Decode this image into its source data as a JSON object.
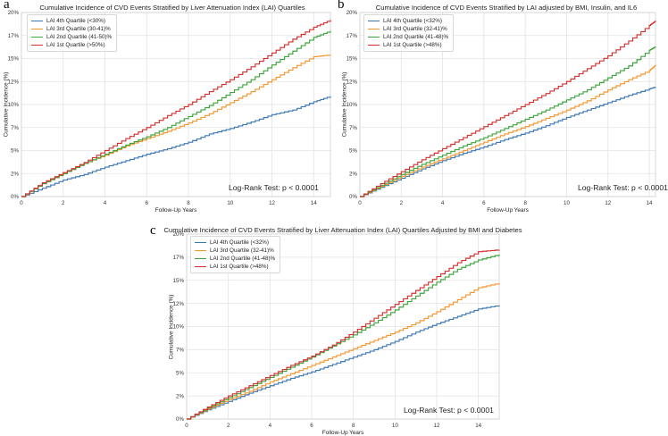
{
  "panels": [
    {
      "letter": "a",
      "annotation": "Log-Rank Test: p < 0.0001",
      "chart_data": {
        "type": "line",
        "title": "Cumulative Incidence of CVD Events Stratified by Liver Attenuation Index (LAI) Quartiles",
        "xlabel": "Follow-Up Years",
        "ylabel": "Cumulative Incidence (%)",
        "xlim": [
          0,
          14.8
        ],
        "ylim": [
          0,
          20
        ],
        "grid": true,
        "legend_position": "top-left",
        "x_ticks": [
          "0",
          "2",
          "4",
          "6",
          "8",
          "10",
          "12",
          "14"
        ],
        "y_ticks": [
          "0%",
          "2%",
          "5%",
          "7%",
          "10%",
          "12%",
          "15%",
          "17%",
          "20%"
        ],
        "x": [
          0,
          1,
          2,
          3,
          4,
          5,
          6,
          7,
          8,
          9,
          10,
          11,
          12,
          13,
          14,
          14.8
        ],
        "series": [
          {
            "name": "LAI 4th Quartile (<30%)",
            "color": "#3a77b5",
            "values": [
              0,
              0.9,
              1.8,
              2.4,
              3.2,
              3.9,
              4.6,
              5.2,
              5.9,
              6.8,
              7.4,
              8.1,
              8.9,
              9.4,
              10.3,
              10.9
            ]
          },
          {
            "name": "LAI 3rd Quartile (30-41)%",
            "color": "#f4952d",
            "values": [
              0,
              1.4,
              2.5,
              3.6,
              4.5,
              5.5,
              6.3,
              7.1,
              8.0,
              9.0,
              10.2,
              11.4,
              12.7,
              14.0,
              15.2,
              15.4
            ]
          },
          {
            "name": "LAI 2nd Quartile (41-50)%",
            "color": "#3ca43c",
            "values": [
              0,
              1.4,
              2.5,
              3.6,
              4.6,
              5.6,
              6.5,
              7.5,
              8.7,
              9.9,
              11.3,
              12.7,
              14.3,
              15.8,
              17.3,
              18.0
            ]
          },
          {
            "name": "LAI 1st Quartile (>50%)",
            "color": "#d3302f",
            "values": [
              0,
              1.5,
              2.6,
              3.7,
              5.0,
              6.3,
              7.5,
              8.8,
              10.0,
              11.4,
              12.7,
              14.1,
              15.6,
              17.1,
              18.4,
              19.2
            ]
          }
        ]
      }
    },
    {
      "letter": "b",
      "annotation": "Log-Rank Test: p < 0.0001",
      "chart_data": {
        "type": "line",
        "title": "Cumulative Incidence of CVD Events Stratified by LAI adjusted by BMI, Insulin, and IL6",
        "xlabel": "Follow-Up Years",
        "ylabel": "Cumulative Incidence (%)",
        "xlim": [
          0,
          14.3
        ],
        "ylim": [
          0,
          20
        ],
        "grid": true,
        "legend_position": "top-left",
        "x_ticks": [
          "0",
          "2",
          "4",
          "6",
          "8",
          "10",
          "12",
          "14"
        ],
        "y_ticks": [
          "0%",
          "2%",
          "5%",
          "7%",
          "10%",
          "12%",
          "15%",
          "17%",
          "20%"
        ],
        "x": [
          0,
          1,
          2,
          3,
          4,
          5,
          6,
          7,
          8,
          9,
          10,
          11,
          12,
          13,
          14,
          14.3
        ],
        "series": [
          {
            "name": "LAI 4th Quartile (<32%)",
            "color": "#3a77b5",
            "values": [
              0,
              1.0,
              2.0,
              3.0,
              3.9,
              4.7,
              5.4,
              6.2,
              6.9,
              7.7,
              8.6,
              9.4,
              10.2,
              11.0,
              11.7,
              11.9
            ]
          },
          {
            "name": "LAI 3rd Quartile (32-41)%",
            "color": "#f4952d",
            "values": [
              0,
              1.1,
              2.2,
              3.2,
              4.1,
              5.0,
              5.9,
              6.8,
              7.6,
              8.5,
              9.4,
              10.4,
              11.6,
              12.7,
              13.7,
              14.3
            ]
          },
          {
            "name": "LAI 2nd Quartile (41-48)%",
            "color": "#3ca43c",
            "values": [
              0,
              1.2,
              2.4,
              3.5,
              4.5,
              5.5,
              6.4,
              7.4,
              8.4,
              9.4,
              10.5,
              11.6,
              12.9,
              14.2,
              15.9,
              16.3
            ]
          },
          {
            "name": "LAI 1st Quartile (>48%)",
            "color": "#d3302f",
            "values": [
              0,
              1.4,
              2.7,
              4.0,
              5.2,
              6.4,
              7.6,
              8.8,
              10.0,
              11.2,
              12.5,
              13.9,
              15.3,
              16.9,
              18.6,
              19.1
            ]
          }
        ]
      }
    },
    {
      "letter": "c",
      "annotation": "Log-Rank Test: p < 0.0001",
      "chart_data": {
        "type": "line",
        "title": "Cumulative Incidence of CVD Events Stratified by Liver Attenuation Index (LAI) Quartiles Adjusted by BMI and Diabetes",
        "xlabel": "Follow-Up Years",
        "ylabel": "Cumulative Incidence (%)",
        "xlim": [
          0,
          15
        ],
        "ylim": [
          0,
          20
        ],
        "grid": true,
        "legend_position": "top-left",
        "x_ticks": [
          "0",
          "2",
          "4",
          "6",
          "8",
          "10",
          "12",
          "14"
        ],
        "y_ticks": [
          "0%",
          "2%",
          "5%",
          "7%",
          "10%",
          "12%",
          "15%",
          "17%",
          "20%"
        ],
        "x": [
          0,
          1,
          2,
          3,
          4,
          5,
          6,
          7,
          8,
          9,
          10,
          11,
          12,
          13,
          14,
          15
        ],
        "series": [
          {
            "name": "LAI 4th Quartile (<32%)",
            "color": "#3a77b5",
            "values": [
              0,
              1.0,
              1.9,
              2.8,
              3.6,
              4.4,
              5.1,
              5.9,
              6.7,
              7.5,
              8.4,
              9.4,
              10.3,
              11.1,
              11.9,
              12.3
            ]
          },
          {
            "name": "LAI 3rd Quartile (32-41)%",
            "color": "#f4952d",
            "values": [
              0,
              1.1,
              2.1,
              3.0,
              4.0,
              4.9,
              5.8,
              6.7,
              7.6,
              8.5,
              9.4,
              10.4,
              11.6,
              12.9,
              14.2,
              14.7
            ]
          },
          {
            "name": "LAI 2nd Quartile (41-48)%",
            "color": "#3ca43c",
            "values": [
              0,
              1.2,
              2.3,
              3.4,
              4.5,
              5.6,
              6.7,
              7.9,
              9.1,
              10.4,
              11.8,
              13.3,
              14.8,
              16.2,
              17.2,
              17.8
            ]
          },
          {
            "name": "LAI 1st Quartile (>48%)",
            "color": "#d3302f",
            "values": [
              0,
              1.3,
              2.5,
              3.6,
              4.7,
              5.8,
              6.8,
              8.0,
              9.4,
              10.9,
              12.4,
              13.9,
              15.4,
              16.9,
              18.1,
              18.3
            ]
          }
        ]
      }
    }
  ]
}
